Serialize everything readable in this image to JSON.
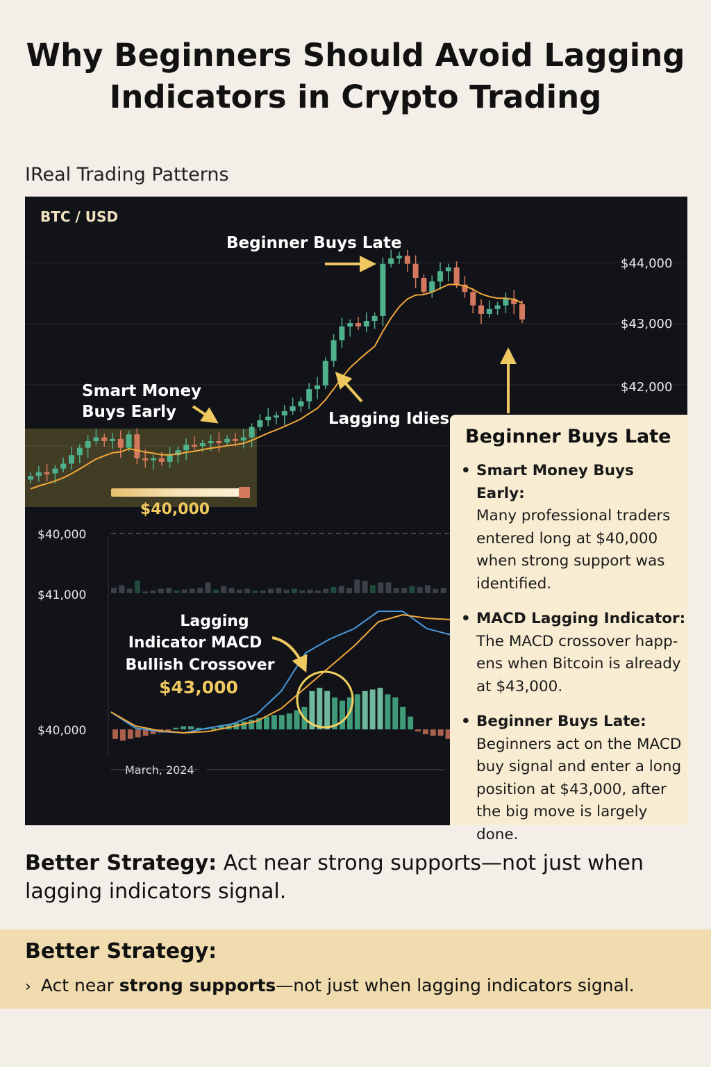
{
  "header": {
    "title_line1": "Why Beginners Should Avoid Lagging",
    "title_line2": "Indicators in Crypto Trading",
    "subtitle": "IReal Trading Patterns"
  },
  "chart_data": {
    "type": "candlestick",
    "symbol": "BTC / USD",
    "price_ticks": [
      "$44,000",
      "$43,000",
      "$42,000"
    ],
    "price_tick_values": [
      44000,
      43000,
      42000
    ],
    "lower_ticks": [
      "$40,000",
      "$41,000",
      "$40,000"
    ],
    "x_label": "March, 2024",
    "first_open": 40450,
    "closes": [
      40510,
      40570,
      40550,
      40630,
      40710,
      40850,
      40970,
      41080,
      41140,
      41080,
      41115,
      40970,
      41190,
      40800,
      40775,
      40800,
      40740,
      40850,
      40930,
      41020,
      41000,
      41045,
      41080,
      41060,
      41115,
      41090,
      41140,
      41310,
      41420,
      41480,
      41500,
      41570,
      41650,
      41730,
      41930,
      41990,
      42390,
      42730,
      42955,
      43010,
      42955,
      43045,
      43125,
      43980,
      44070,
      44110,
      43980,
      43750,
      43520,
      43690,
      43860,
      43920,
      43640,
      43520,
      43300,
      43160,
      43240,
      43300,
      43410,
      43320,
      43070
    ],
    "moving_average": "lagging line",
    "support_level": 40000,
    "volume": [
      6,
      9,
      5,
      14,
      2,
      3,
      5,
      6,
      3,
      4,
      5,
      6,
      12,
      4,
      8,
      6,
      4,
      5,
      3,
      3,
      5,
      6,
      4,
      5,
      3,
      4,
      3,
      5,
      7,
      8,
      6,
      15,
      14,
      9,
      12,
      12,
      6,
      6,
      8,
      7,
      9,
      5,
      6
    ],
    "macd": [
      2.5,
      0.2,
      -0.3,
      -0.5,
      0.2,
      0.8,
      2.2,
      5.5,
      11,
      13,
      14.5,
      17,
      17,
      14.5,
      13.6
    ],
    "signal": [
      2.5,
      0.5,
      -0.2,
      -0.5,
      -0.3,
      0.4,
      1.2,
      3,
      6,
      9,
      12,
      15.5,
      16.5,
      16,
      15.8
    ],
    "histogram": [
      -3,
      -3.5,
      -3,
      -2.5,
      -2,
      -1.5,
      -1,
      -0.5,
      0.5,
      1,
      1,
      0.5,
      0.3,
      0.4,
      1,
      1.5,
      2,
      2.5,
      3,
      3.5,
      4,
      4.5,
      4.5,
      5,
      6,
      7,
      12,
      13,
      12,
      10,
      9,
      10,
      11,
      12,
      12.5,
      13,
      11,
      10,
      7,
      4,
      -0.6,
      -1.5,
      -2,
      -2,
      -3
    ],
    "colors": {
      "up": "#4fb08c",
      "down": "#d4785e",
      "ma": "#f2a83b",
      "macd": "#4a9be0",
      "signal": "#f2a83b",
      "annotation": "#f0c860",
      "background": "#111318"
    },
    "annotations": {
      "beginner_late": "Beginner Buys Late",
      "smart_money_1": "Smart Money",
      "smart_money_2": "Buys Early",
      "lagging": "Lagging Idies",
      "support_price": "$40,000",
      "macd_1": "Lagging",
      "macd_2": "Indicator MACD",
      "macd_3": "Bullish Crossover",
      "macd_price": "$43,000"
    }
  },
  "panel": {
    "title": "Beginner Buys Late",
    "bullets": [
      {
        "head": "Smart Money Buys Early:",
        "body": "Many professional traders entered long at $40,000 when strong support was identified."
      },
      {
        "head": "MACD Lagging Indicator:",
        "body": "The MACD crossover happ-ens when Bitcoin is already at $43,000."
      },
      {
        "head": "Beginner Buys Late:",
        "body": "Beginners act on the MACD buy signal and enter a long position at $43,000, after the big move is largely done."
      }
    ]
  },
  "strategy": {
    "label": "Better Strategy:",
    "text": " Act near strong supports—not just when lagging indicators signal."
  },
  "band": {
    "title": "Better Strategy:",
    "pre": "Act near ",
    "bold": "strong supports",
    "post": "—not just when lagging indicators signal."
  }
}
